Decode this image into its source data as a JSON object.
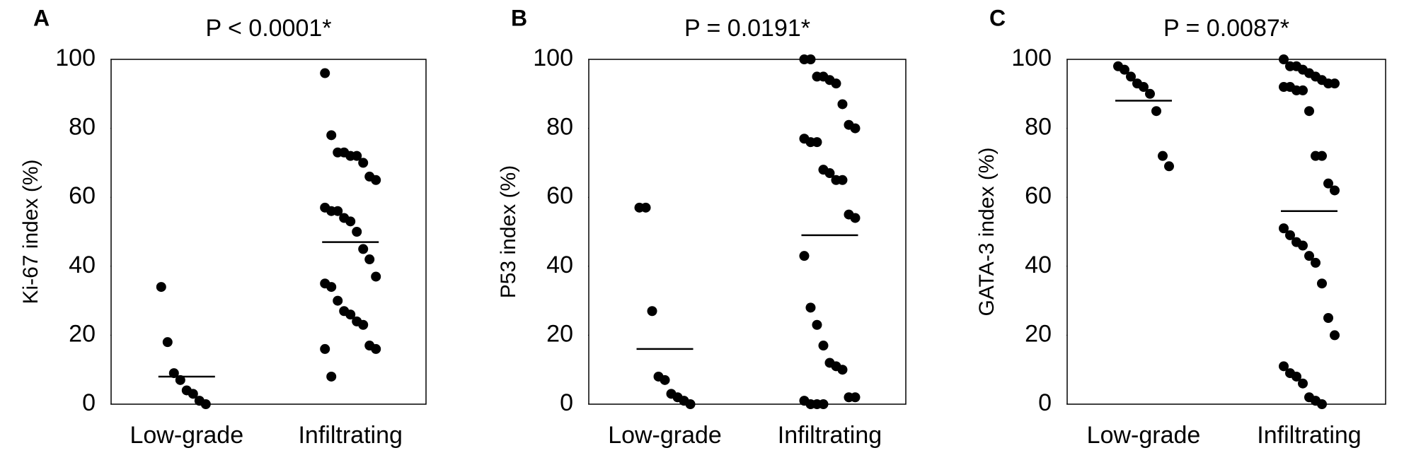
{
  "chart_data": [
    {
      "type": "dotplot",
      "panel_label": "A",
      "title": "P < 0.0001*",
      "ylabel": "Ki-67 index (%)",
      "categories": [
        "Low-grade",
        "Infiltrating"
      ],
      "color": "#000000",
      "values": [
        [
          34,
          18,
          9,
          7,
          4,
          3,
          1,
          0
        ],
        [
          96,
          78,
          73,
          73,
          72,
          72,
          70,
          66,
          65,
          57,
          56,
          56,
          54,
          53,
          50,
          45,
          42,
          37,
          35,
          34,
          30,
          27,
          26,
          24,
          23,
          17,
          16,
          16,
          8
        ]
      ],
      "means": [
        8,
        47
      ],
      "ylim": [
        0,
        100
      ],
      "yticks": [
        0,
        20,
        40,
        60,
        80,
        100
      ]
    },
    {
      "type": "dotplot",
      "panel_label": "B",
      "title": "P = 0.0191*",
      "ylabel": "P53 index (%)",
      "categories": [
        "Low-grade",
        "Infiltrating"
      ],
      "color": "#000000",
      "values": [
        [
          57,
          57,
          27,
          8,
          7,
          3,
          2,
          1,
          0
        ],
        [
          100,
          100,
          95,
          95,
          94,
          93,
          87,
          81,
          80,
          77,
          76,
          76,
          68,
          67,
          65,
          65,
          55,
          54,
          43,
          28,
          23,
          17,
          12,
          11,
          10,
          2,
          2,
          1,
          0,
          0,
          0
        ]
      ],
      "means": [
        16,
        49
      ],
      "ylim": [
        0,
        100
      ],
      "yticks": [
        0,
        20,
        40,
        60,
        80,
        100
      ]
    },
    {
      "type": "dotplot",
      "panel_label": "C",
      "title": "P = 0.0087*",
      "ylabel": "GATA-3 index (%)",
      "categories": [
        "Low-grade",
        "Infiltrating"
      ],
      "color": "#000000",
      "values": [
        [
          98,
          97,
          95,
          93,
          92,
          90,
          85,
          72,
          69
        ],
        [
          100,
          98,
          98,
          97,
          96,
          95,
          94,
          93,
          93,
          92,
          92,
          91,
          91,
          85,
          72,
          72,
          64,
          62,
          51,
          49,
          47,
          46,
          43,
          41,
          35,
          25,
          20,
          11,
          9,
          8,
          6,
          2,
          1,
          0
        ]
      ],
      "means": [
        88,
        56
      ],
      "ylim": [
        0,
        100
      ],
      "yticks": [
        0,
        20,
        40,
        60,
        80,
        100
      ]
    }
  ]
}
